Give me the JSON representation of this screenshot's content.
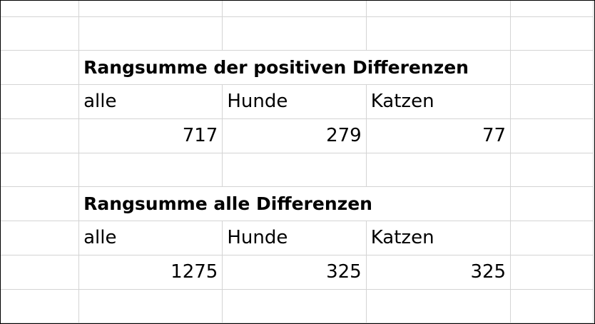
{
  "sections": [
    {
      "title": "Rangsumme der positiven Differenzen",
      "headers": [
        "alle",
        "Hunde",
        "Katzen"
      ],
      "values": [
        "717",
        "279",
        "77"
      ]
    },
    {
      "title": "Rangsumme alle Differenzen",
      "headers": [
        "alle",
        "Hunde",
        "Katzen"
      ],
      "values": [
        "1275",
        "325",
        "325"
      ]
    }
  ]
}
